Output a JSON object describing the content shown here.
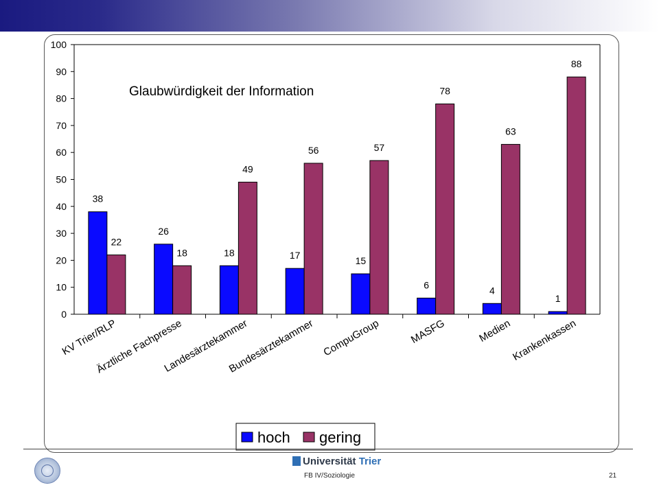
{
  "chart_data": {
    "type": "bar",
    "title": "Glaubwürdigkeit der Information",
    "categories": [
      "KV Trier/RLP",
      "Ärztliche Fachpresse",
      "Landesärztekammer",
      "Bundesärztekammer",
      "CompuGroup",
      "MASFG",
      "Medien",
      "Krankenkassen"
    ],
    "series": [
      {
        "name": "hoch",
        "color": "#0a0aff",
        "values": [
          38,
          26,
          18,
          17,
          15,
          6,
          4,
          1
        ]
      },
      {
        "name": "gering",
        "color": "#993366",
        "values": [
          22,
          18,
          49,
          56,
          57,
          78,
          63,
          88
        ]
      }
    ],
    "yticks": [
      "0",
      "10",
      "20",
      "30",
      "40",
      "50",
      "60",
      "70",
      "80",
      "90",
      "100"
    ],
    "ylim": [
      0,
      100
    ],
    "legend_position": "bottom"
  },
  "footer": {
    "university_name": "Universität",
    "university_city": "Trier",
    "department": "FB IV/Soziologie",
    "page_number": "21"
  }
}
